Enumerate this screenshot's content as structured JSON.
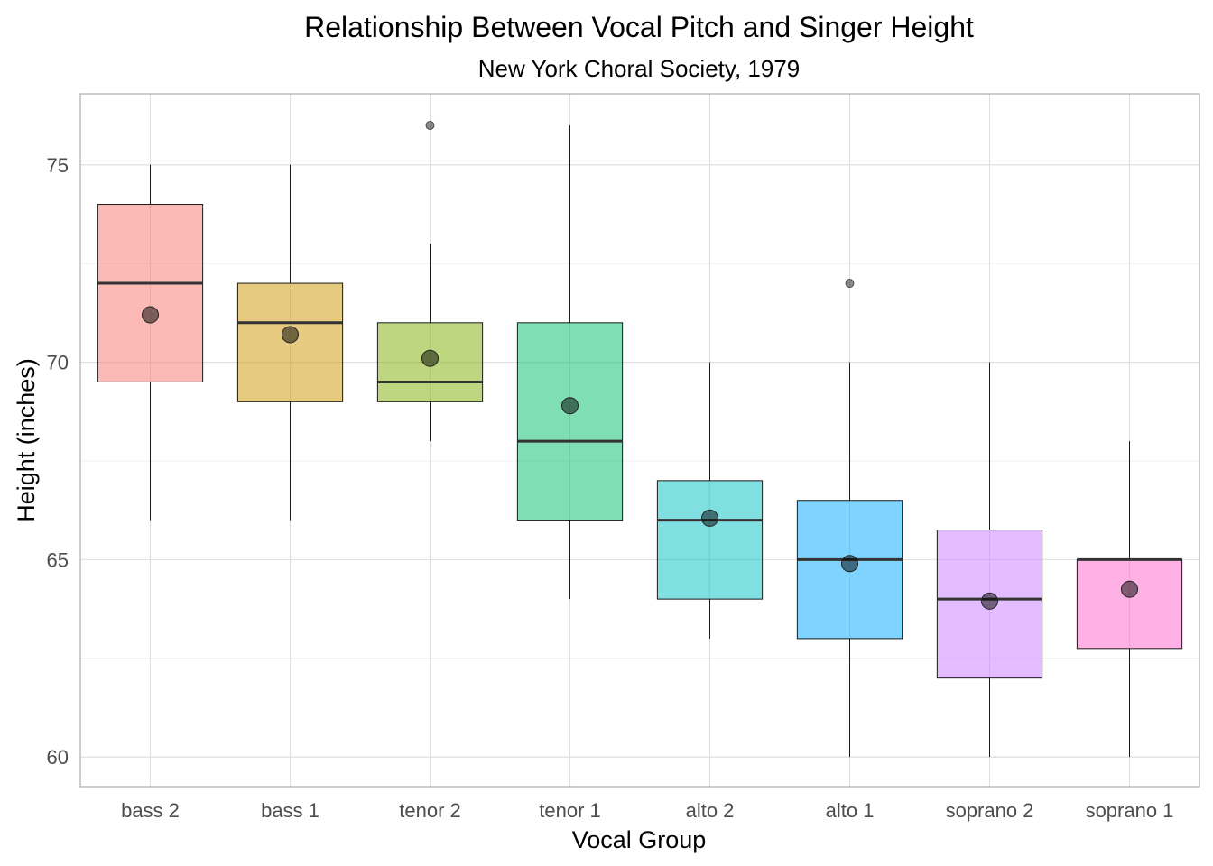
{
  "chart_data": {
    "type": "box",
    "title": "Relationship Between Vocal Pitch and Singer Height",
    "subtitle": "New York Choral Society, 1979",
    "xlabel": "Vocal Group",
    "ylabel": "Height (inches)",
    "ylim": [
      59.25,
      76.8
    ],
    "yticks": [
      60,
      65,
      70,
      75
    ],
    "grid": true,
    "categories": [
      "bass 2",
      "bass 1",
      "tenor 2",
      "tenor 1",
      "alto 2",
      "alto 1",
      "soprano 2",
      "soprano 1"
    ],
    "boxes": [
      {
        "group": "bass 2",
        "whisker_low": 66,
        "q1": 69.5,
        "median": 72,
        "q3": 74,
        "whisker_high": 75,
        "mean": 71.2,
        "outliers": [],
        "color": "#F8766D"
      },
      {
        "group": "bass 1",
        "whisker_low": 66,
        "q1": 69,
        "median": 71,
        "q3": 72,
        "whisker_high": 75,
        "mean": 70.7,
        "outliers": [],
        "color": "#CD9600"
      },
      {
        "group": "tenor 2",
        "whisker_low": 68,
        "q1": 69,
        "median": 69.5,
        "q3": 71,
        "whisker_high": 73,
        "mean": 70.1,
        "outliers": [
          76
        ],
        "color": "#7CAE00"
      },
      {
        "group": "tenor 1",
        "whisker_low": 64,
        "q1": 66,
        "median": 68,
        "q3": 71,
        "whisker_high": 76,
        "mean": 68.9,
        "outliers": [],
        "color": "#00BE67"
      },
      {
        "group": "alto 2",
        "whisker_low": 63,
        "q1": 64,
        "median": 66,
        "q3": 67,
        "whisker_high": 70,
        "mean": 66.05,
        "outliers": [],
        "color": "#00BFC4"
      },
      {
        "group": "alto 1",
        "whisker_low": 60,
        "q1": 63,
        "median": 65,
        "q3": 66.5,
        "whisker_high": 70,
        "mean": 64.9,
        "outliers": [
          72
        ],
        "color": "#00A9FF"
      },
      {
        "group": "soprano 2",
        "whisker_low": 60,
        "q1": 62,
        "median": 64,
        "q3": 65.75,
        "whisker_high": 70,
        "mean": 63.95,
        "outliers": [],
        "color": "#C77CFF"
      },
      {
        "group": "soprano 1",
        "whisker_low": 60,
        "q1": 62.75,
        "median": 65,
        "q3": 65,
        "whisker_high": 68,
        "mean": 64.25,
        "outliers": [],
        "color": "#FF61CC"
      }
    ]
  }
}
